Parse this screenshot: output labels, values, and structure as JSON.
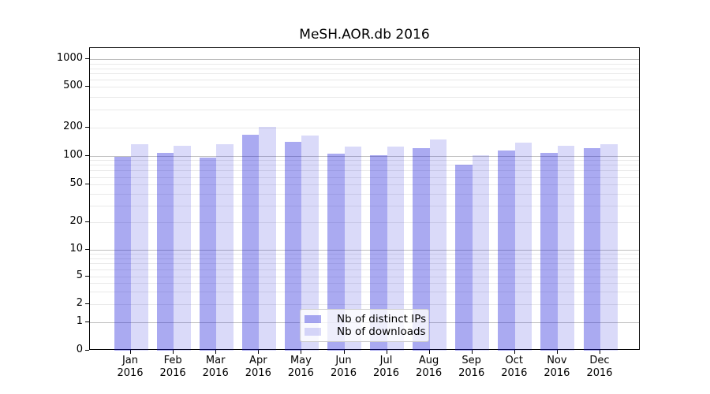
{
  "chart_data": {
    "type": "bar",
    "title": "MeSH.AOR.db 2016",
    "categories": [
      "Jan",
      "Feb",
      "Mar",
      "Apr",
      "May",
      "Jun",
      "Jul",
      "Aug",
      "Sep",
      "Oct",
      "Nov",
      "Dec"
    ],
    "x_tick_second_line": "2016",
    "series": [
      {
        "name": "Nb of distinct IPs",
        "color": "rgba(20,20,215,0.36)",
        "values": [
          98,
          107,
          96,
          168,
          140,
          106,
          101,
          121,
          81,
          113,
          108,
          120
        ]
      },
      {
        "name": "Nb of downloads",
        "color": "rgba(20,20,215,0.155)",
        "values": [
          132,
          127,
          133,
          203,
          165,
          125,
          125,
          150,
          102,
          139,
          129,
          134
        ]
      }
    ],
    "ylabel": "",
    "xlabel": "",
    "y_axis": {
      "scale": "symlog",
      "ticks": [
        0,
        1,
        2,
        5,
        10,
        20,
        50,
        100,
        200,
        500,
        1000
      ],
      "range": [
        0,
        1300
      ]
    },
    "grid": {
      "major": true,
      "minor": true,
      "major_values": [
        1,
        10,
        100,
        1000
      ]
    },
    "legend": {
      "position": "lower center",
      "entries": [
        "Nb of distinct IPs",
        "Nb of downloads"
      ]
    }
  },
  "colors": {
    "grid_major": "#bfbfbf",
    "grid_minor": "#e9e9e9",
    "spine": "#000000",
    "background": "#ffffff"
  }
}
